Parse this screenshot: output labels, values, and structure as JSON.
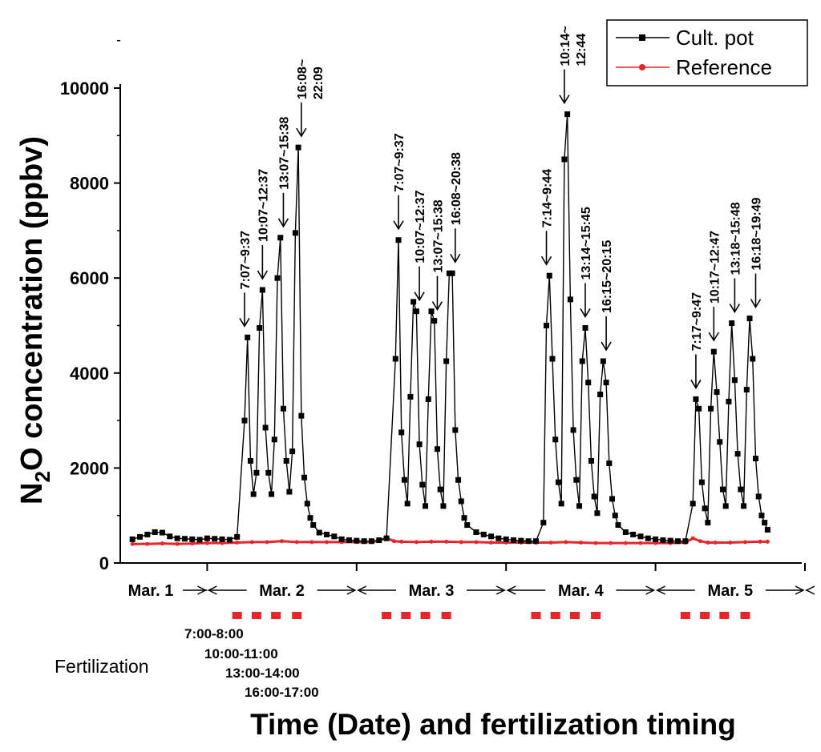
{
  "chart_data": {
    "type": "line",
    "title": "",
    "xlabel": "Time (Date) and fertilization timing",
    "ylabel": "N2O concentration (ppbv)",
    "ylabel_main": "N",
    "ylabel_sub": "2",
    "ylabel_rest": "O concentration (ppbv)",
    "ylim": [
      0,
      10000
    ],
    "yticks": [
      "0",
      "2000",
      "4000",
      "6000",
      "8000",
      "10000"
    ],
    "xlim": [
      0.5,
      5.5
    ],
    "legend_position": "top-right",
    "day_labels": [
      {
        "label": "Mar. 1",
        "center": 0.7
      },
      {
        "label": "Mar. 2",
        "center": 1.5
      },
      {
        "label": "Mar. 3",
        "center": 2.5
      },
      {
        "label": "Mar. 4",
        "center": 3.5
      },
      {
        "label": "Mar. 5",
        "center": 4.5
      }
    ],
    "day_boundaries": [
      1.0,
      2.0,
      3.0,
      4.0,
      5.0
    ],
    "fertilization_label": "Fertilization",
    "fertilization_times": [
      "7:00-8:00",
      "10:00-11:00",
      "13:00-14:00",
      "16:00-17:00"
    ],
    "fertilization_marks": [
      1.2,
      1.33,
      1.46,
      1.6,
      2.2,
      2.33,
      2.46,
      2.6,
      3.2,
      3.33,
      3.46,
      3.6,
      4.2,
      4.33,
      4.46,
      4.6
    ],
    "series": [
      {
        "name": "Cult. pot",
        "color": "#000000",
        "x": [
          0.5,
          0.55,
          0.6,
          0.65,
          0.7,
          0.75,
          0.8,
          0.85,
          0.9,
          0.95,
          1.0,
          1.05,
          1.1,
          1.15,
          1.2,
          1.25,
          1.27,
          1.29,
          1.31,
          1.33,
          1.35,
          1.37,
          1.39,
          1.41,
          1.43,
          1.45,
          1.47,
          1.49,
          1.51,
          1.53,
          1.55,
          1.57,
          1.59,
          1.61,
          1.63,
          1.65,
          1.67,
          1.69,
          1.71,
          1.75,
          1.8,
          1.85,
          1.9,
          1.95,
          2.0,
          2.05,
          2.1,
          2.15,
          2.2,
          2.26,
          2.28,
          2.3,
          2.32,
          2.34,
          2.36,
          2.38,
          2.4,
          2.42,
          2.44,
          2.46,
          2.48,
          2.5,
          2.52,
          2.54,
          2.56,
          2.58,
          2.6,
          2.62,
          2.64,
          2.66,
          2.68,
          2.7,
          2.72,
          2.74,
          2.8,
          2.85,
          2.9,
          2.95,
          3.0,
          3.05,
          3.1,
          3.15,
          3.2,
          3.25,
          3.27,
          3.29,
          3.31,
          3.33,
          3.35,
          3.37,
          3.39,
          3.41,
          3.43,
          3.45,
          3.47,
          3.49,
          3.51,
          3.53,
          3.55,
          3.57,
          3.59,
          3.61,
          3.63,
          3.65,
          3.67,
          3.69,
          3.71,
          3.73,
          3.75,
          3.8,
          3.85,
          3.9,
          3.95,
          4.0,
          4.05,
          4.1,
          4.15,
          4.2,
          4.25,
          4.27,
          4.29,
          4.31,
          4.33,
          4.35,
          4.37,
          4.39,
          4.41,
          4.43,
          4.45,
          4.47,
          4.49,
          4.51,
          4.53,
          4.55,
          4.57,
          4.59,
          4.61,
          4.63,
          4.65,
          4.67,
          4.69,
          4.71,
          4.73,
          4.75
        ],
        "values": [
          500,
          550,
          600,
          650,
          640,
          560,
          520,
          510,
          500,
          490,
          520,
          510,
          500,
          490,
          550,
          3000,
          4750,
          2150,
          1450,
          1900,
          4950,
          5750,
          2850,
          1900,
          1450,
          2600,
          6000,
          6850,
          3250,
          2150,
          1500,
          2350,
          6950,
          8750,
          3100,
          1800,
          1250,
          950,
          800,
          640,
          600,
          560,
          500,
          480,
          470,
          460,
          460,
          480,
          520,
          4300,
          6800,
          2750,
          1750,
          1250,
          3500,
          5500,
          5300,
          2500,
          1650,
          1200,
          3450,
          5300,
          5100,
          2400,
          1550,
          1200,
          4250,
          6100,
          6100,
          2800,
          1750,
          1300,
          950,
          800,
          650,
          600,
          560,
          520,
          500,
          480,
          470,
          460,
          460,
          850,
          5000,
          6050,
          4300,
          2600,
          1700,
          1250,
          8500,
          9450,
          5550,
          2800,
          1750,
          1200,
          4250,
          4950,
          3800,
          2150,
          1400,
          1050,
          3550,
          4250,
          3800,
          2100,
          1350,
          1000,
          800,
          650,
          600,
          560,
          520,
          500,
          480,
          470,
          460,
          460,
          1250,
          3450,
          3250,
          1700,
          1150,
          850,
          3250,
          4450,
          3600,
          2550,
          1550,
          1200,
          3400,
          5050,
          3850,
          2300,
          1550,
          1200,
          3650,
          5150,
          4300,
          2200,
          1400,
          1000,
          850,
          700
        ]
      },
      {
        "name": "Reference",
        "color": "#e8262a",
        "x": [
          0.5,
          0.6,
          0.7,
          0.8,
          0.9,
          1.0,
          1.1,
          1.2,
          1.3,
          1.4,
          1.5,
          1.6,
          1.7,
          1.8,
          1.9,
          2.0,
          2.1,
          2.15,
          2.2,
          2.25,
          2.3,
          2.4,
          2.5,
          2.6,
          2.7,
          2.8,
          2.9,
          3.0,
          3.1,
          3.2,
          3.3,
          3.4,
          3.5,
          3.6,
          3.7,
          3.8,
          3.9,
          4.0,
          4.1,
          4.2,
          4.25,
          4.3,
          4.35,
          4.4,
          4.5,
          4.6,
          4.7,
          4.75
        ],
        "values": [
          400,
          400,
          410,
          400,
          410,
          420,
          420,
          430,
          440,
          440,
          460,
          440,
          440,
          440,
          440,
          440,
          440,
          470,
          530,
          460,
          450,
          440,
          450,
          450,
          440,
          440,
          430,
          430,
          430,
          430,
          430,
          440,
          430,
          420,
          420,
          420,
          420,
          420,
          420,
          430,
          520,
          460,
          430,
          430,
          430,
          440,
          450,
          450
        ]
      }
    ],
    "annotations": [
      {
        "label": "7:07~9:37",
        "x": 1.25,
        "y": 4750
      },
      {
        "label": "10:07~12:37",
        "x": 1.37,
        "y": 5750
      },
      {
        "label": "13:07~15:38",
        "x": 1.51,
        "y": 6850
      },
      {
        "label": "16:08~",
        "label2": "22:09",
        "x": 1.63,
        "y": 8750
      },
      {
        "label": "7:07~9:37",
        "x": 2.28,
        "y": 6800
      },
      {
        "label": "10:07~12:37",
        "x": 2.42,
        "y": 5300
      },
      {
        "label": "13:07~15:38",
        "x": 2.54,
        "y": 5100
      },
      {
        "label": "16:08~20:38",
        "x": 2.66,
        "y": 6100
      },
      {
        "label": "7:14~9:44",
        "x": 3.27,
        "y": 6050
      },
      {
        "label": "10:14~",
        "label2": "12:44",
        "x": 3.39,
        "y": 9450
      },
      {
        "label": "13:14~15:45",
        "x": 3.53,
        "y": 4950
      },
      {
        "label": "16:15~20:15",
        "x": 3.67,
        "y": 4250
      },
      {
        "label": "7:17~9:47",
        "x": 4.27,
        "y": 3450
      },
      {
        "label": "10:17~12:47",
        "x": 4.39,
        "y": 4450
      },
      {
        "label": "13:18~15:48",
        "x": 4.53,
        "y": 5050
      },
      {
        "label": "16:18~19:49",
        "x": 4.67,
        "y": 5150
      }
    ]
  }
}
